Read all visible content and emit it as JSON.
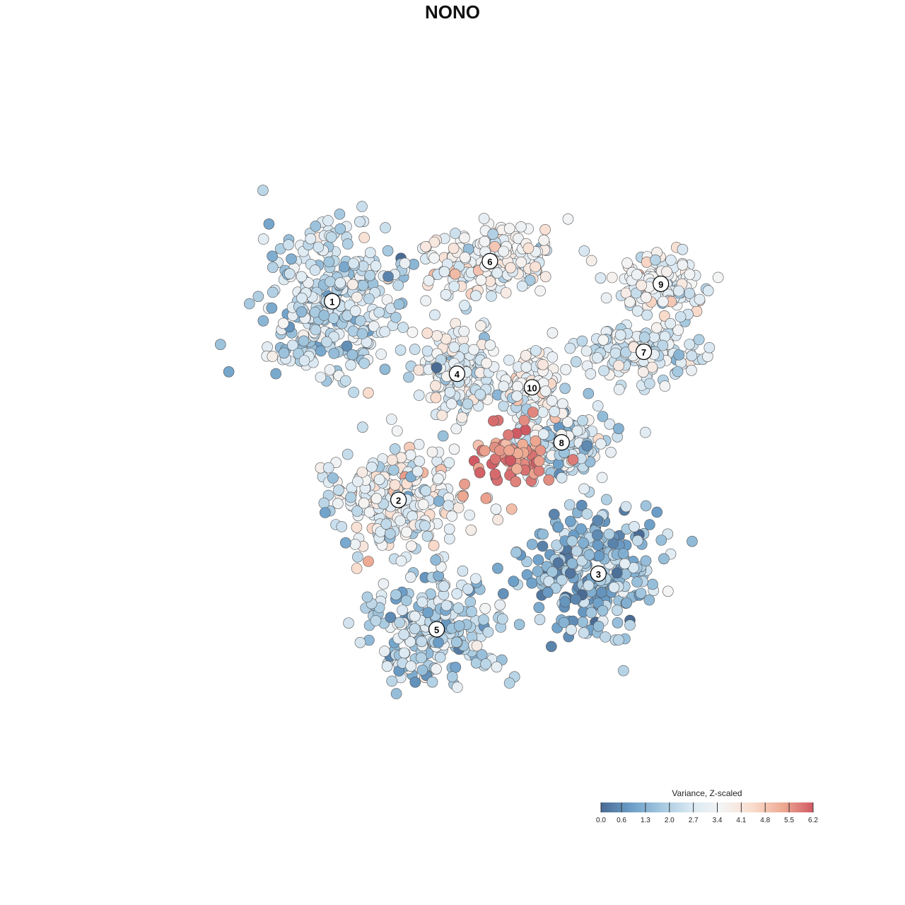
{
  "title": "NONO",
  "chart_data": {
    "type": "scatter",
    "title": "NONO",
    "xlabel": "",
    "ylabel": "",
    "grid": false,
    "colorbar": {
      "title": "Variance, Z-scaled",
      "ticks": [
        "0.0",
        "0.6",
        "1.3",
        "2.0",
        "2.7",
        "3.4",
        "4.1",
        "4.8",
        "5.5",
        "6.2"
      ],
      "range": [
        0.0,
        6.2
      ],
      "colors": [
        "#4a6b94",
        "#6c9fc8",
        "#a4c8df",
        "#dbe9f3",
        "#f4f4f4",
        "#f9dccd",
        "#eeaa93",
        "#d05a64"
      ],
      "placement": "bottom-right"
    },
    "clusters": [
      {
        "label": "1",
        "x": 0.29,
        "y": 0.731,
        "mean": 2.3,
        "spread": [
          0.95,
          1.0
        ]
      },
      {
        "label": "2",
        "x": 0.391,
        "y": 0.424,
        "mean": 3.1,
        "spread": [
          0.85,
          0.75
        ]
      },
      {
        "label": "3",
        "x": 0.695,
        "y": 0.31,
        "mean": 1.4,
        "spread": [
          0.9,
          0.85
        ]
      },
      {
        "label": "4",
        "x": 0.48,
        "y": 0.619,
        "mean": 2.9,
        "spread": [
          0.6,
          0.6
        ]
      },
      {
        "label": "5",
        "x": 0.449,
        "y": 0.224,
        "mean": 2.2,
        "spread": [
          0.85,
          0.7
        ]
      },
      {
        "label": "6",
        "x": 0.53,
        "y": 0.793,
        "mean": 3.3,
        "spread": [
          0.9,
          0.45
        ]
      },
      {
        "label": "7",
        "x": 0.764,
        "y": 0.653,
        "mean": 2.8,
        "spread": [
          0.8,
          0.35
        ]
      },
      {
        "label": "8",
        "x": 0.639,
        "y": 0.513,
        "mean": 2.4,
        "spread": [
          0.6,
          0.5
        ]
      },
      {
        "label": "9",
        "x": 0.79,
        "y": 0.758,
        "mean": 3.2,
        "spread": [
          0.55,
          0.4
        ]
      },
      {
        "label": "10",
        "x": 0.594,
        "y": 0.598,
        "mean": 3.2,
        "spread": [
          0.35,
          0.45
        ]
      }
    ],
    "hotspot": {
      "x": 0.56,
      "y": 0.492,
      "mean": 5.7
    }
  }
}
